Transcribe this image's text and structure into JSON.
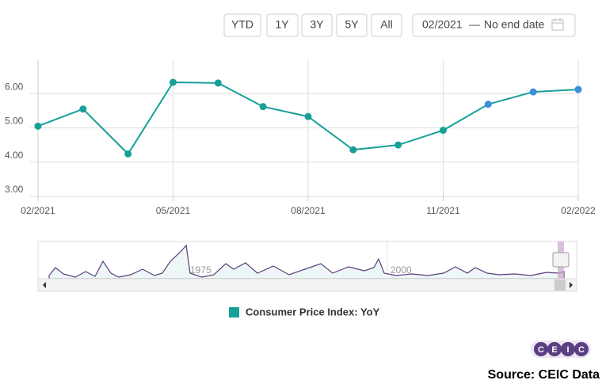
{
  "range_buttons": [
    "YTD",
    "1Y",
    "3Y",
    "5Y",
    "All"
  ],
  "date_range": {
    "start": "02/2021",
    "separator": "—",
    "end": "No end date"
  },
  "navigator_labels": [
    "1975",
    "2000"
  ],
  "logo": [
    "C",
    "E",
    "I",
    "C"
  ],
  "source": "Source: CEIC Data",
  "chart_data": {
    "type": "line",
    "categories": [
      "02/2021",
      null,
      null,
      "05/2021",
      null,
      null,
      "08/2021",
      null,
      null,
      "11/2021",
      null,
      null,
      "02/2022"
    ],
    "series": [
      {
        "name": "Consumer Price Index: YoY",
        "color": "#17a098",
        "values": [
          5.05,
          5.55,
          4.24,
          6.33,
          6.31,
          5.62,
          5.33,
          4.36,
          4.5,
          4.93,
          5.69,
          6.05,
          6.12
        ],
        "marker_colors": [
          "#17a098",
          "#17a098",
          "#17a098",
          "#17a098",
          "#17a098",
          "#17a098",
          "#17a098",
          "#17a098",
          "#17a098",
          "#17a098",
          "#3a8fd9",
          "#3a8fd9",
          "#3a8fd9"
        ]
      }
    ],
    "ylim": [
      3,
      7
    ],
    "yticks": [
      {
        "value": 3,
        "label": "3.00"
      },
      {
        "value": 4,
        "label": "4.00"
      },
      {
        "value": 5,
        "label": "5.00"
      },
      {
        "value": 6,
        "label": "6.00"
      }
    ],
    "grid": true
  }
}
